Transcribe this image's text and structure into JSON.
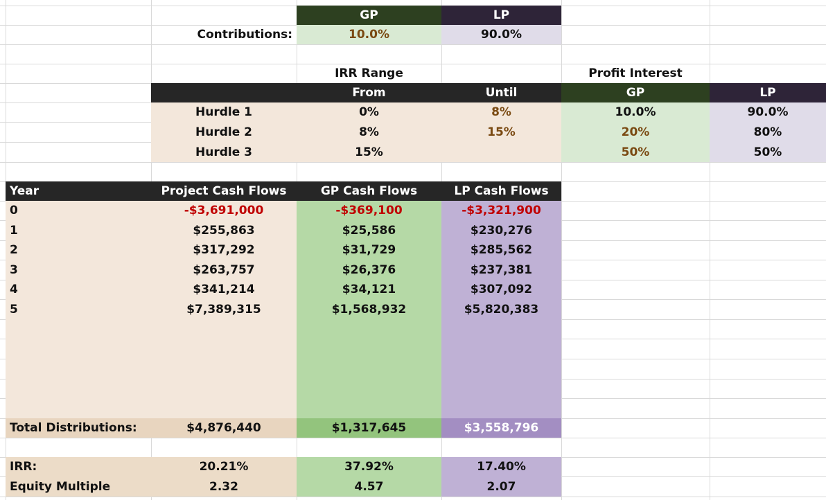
{
  "contributions": {
    "label": "Contributions:",
    "gp_header": "GP",
    "lp_header": "LP",
    "gp_value": "10.0%",
    "lp_value": "90.0%"
  },
  "waterfall": {
    "irr_range_title": "IRR Range",
    "profit_interest_title": "Profit Interest",
    "from_header": "From",
    "until_header": "Until",
    "gp_header": "GP",
    "lp_header": "LP",
    "hurdles": [
      {
        "label": "Hurdle 1",
        "from": "0%",
        "until": "8%",
        "gp": "10.0%",
        "lp": "90.0%"
      },
      {
        "label": "Hurdle 2",
        "from": "8%",
        "until": "15%",
        "gp": "20%",
        "lp": "80%"
      },
      {
        "label": "Hurdle 3",
        "from": "15%",
        "until": "",
        "gp": "50%",
        "lp": "50%"
      }
    ]
  },
  "cashflows": {
    "headers": {
      "year": "Year",
      "project": "Project Cash Flows",
      "gp": "GP Cash Flows",
      "lp": "LP Cash Flows"
    },
    "rows": [
      {
        "year": "0",
        "project": "-$3,691,000",
        "gp": "-$369,100",
        "lp": "-$3,321,900"
      },
      {
        "year": "1",
        "project": "$255,863",
        "gp": "$25,586",
        "lp": "$230,276"
      },
      {
        "year": "2",
        "project": "$317,292",
        "gp": "$31,729",
        "lp": "$285,562"
      },
      {
        "year": "3",
        "project": "$263,757",
        "gp": "$26,376",
        "lp": "$237,381"
      },
      {
        "year": "4",
        "project": "$341,214",
        "gp": "$34,121",
        "lp": "$307,092"
      },
      {
        "year": "5",
        "project": "$7,389,315",
        "gp": "$1,568,932",
        "lp": "$5,820,383"
      }
    ],
    "totals": {
      "label": "Total Distributions:",
      "project": "$4,876,440",
      "gp": "$1,317,645",
      "lp": "$3,558,796"
    },
    "irr": {
      "label": "IRR:",
      "project": "20.21%",
      "gp": "37.92%",
      "lp": "17.40%"
    },
    "multiple": {
      "label": "Equity Multiple",
      "project": "2.32",
      "gp": "4.57",
      "lp": "2.07"
    }
  },
  "colors": {
    "dark_header": "#262626",
    "gp_header": "#2d4020",
    "lp_header": "#2e2438",
    "beige_fill": "#f3e7db",
    "light_green_fill": "#d9ead3",
    "light_purple_fill": "#e0dce9",
    "green_fill": "#b5d9a6",
    "purple_fill": "#bfb1d5",
    "negative_text": "#c00000",
    "accent_text": "#7a4a12"
  }
}
